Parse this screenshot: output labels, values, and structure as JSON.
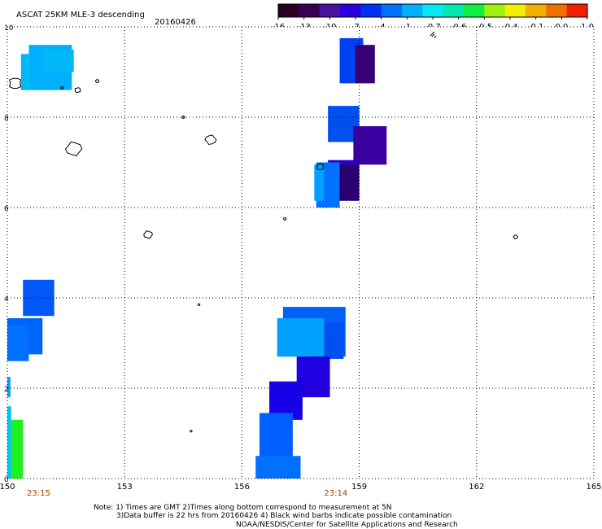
{
  "header": {
    "title": "ASCAT 25KM MLE-3 descending",
    "date": "20160426"
  },
  "colorbar": {
    "colors": [
      "#2a0020",
      "#3a0050",
      "#4a10a0",
      "#2a00e0",
      "#0030f0",
      "#0070ff",
      "#00b0ff",
      "#00e8f0",
      "#00e8b0",
      "#10f040",
      "#a0f010",
      "#f0f000",
      "#f0b000",
      "#f07000",
      "#f02000"
    ],
    "tick_labels": [
      "-16",
      "-13",
      "-10",
      "-7",
      "-4",
      "-1",
      "-0.7",
      "-0.6",
      "-0.5",
      "-0.4",
      "-0.1",
      "0.0",
      "1.0"
    ]
  },
  "map": {
    "x_ticks": [
      "150",
      "153",
      "156",
      "159",
      "162",
      "165"
    ],
    "y_ticks": [
      "0",
      "2",
      "4",
      "6",
      "8",
      "10"
    ],
    "time_labels": [
      {
        "lon": 150.8,
        "text": "23:15"
      },
      {
        "lon": 158.4,
        "text": "23:14"
      }
    ]
  },
  "mle_cells": [
    {
      "lon": 150.55,
      "lat": 8.6,
      "w": 1.1,
      "h": 1.0,
      "color": "#00b0ff"
    },
    {
      "lon": 150.9,
      "lat": 9.0,
      "w": 0.8,
      "h": 0.5,
      "color": "#00b8f8"
    },
    {
      "lon": 150.35,
      "lat": 8.6,
      "w": 0.25,
      "h": 0.8,
      "color": "#00b8f8"
    },
    {
      "lon": 158.5,
      "lat": 8.75,
      "w": 0.6,
      "h": 1.0,
      "color": "#0040f0"
    },
    {
      "lon": 158.9,
      "lat": 8.75,
      "w": 0.5,
      "h": 0.85,
      "color": "#3a0078"
    },
    {
      "lon": 158.2,
      "lat": 7.45,
      "w": 0.8,
      "h": 0.8,
      "color": "#0050f0"
    },
    {
      "lon": 158.85,
      "lat": 6.95,
      "w": 0.85,
      "h": 0.85,
      "color": "#3a00a0"
    },
    {
      "lon": 158.2,
      "lat": 6.15,
      "w": 0.8,
      "h": 0.9,
      "color": "#2a00c0"
    },
    {
      "lon": 158.45,
      "lat": 6.15,
      "w": 0.55,
      "h": 0.8,
      "color": "#2a0070"
    },
    {
      "lon": 157.9,
      "lat": 6.0,
      "w": 0.6,
      "h": 1.0,
      "color": "#0070ff"
    },
    {
      "lon": 157.85,
      "lat": 6.15,
      "w": 0.25,
      "h": 0.8,
      "color": "#00a0ff"
    },
    {
      "lon": 150.4,
      "lat": 3.6,
      "w": 0.8,
      "h": 0.8,
      "color": "#0058f8"
    },
    {
      "lon": 150.0,
      "lat": 2.75,
      "w": 0.9,
      "h": 0.8,
      "color": "#0064ff"
    },
    {
      "lon": 150.0,
      "lat": 2.6,
      "w": 0.55,
      "h": 0.8,
      "color": "#0070ff"
    },
    {
      "lon": 157.05,
      "lat": 2.7,
      "w": 1.6,
      "h": 1.1,
      "color": "#0060f8"
    },
    {
      "lon": 157.7,
      "lat": 2.65,
      "w": 0.9,
      "h": 0.8,
      "color": "#0050f0"
    },
    {
      "lon": 156.9,
      "lat": 2.7,
      "w": 1.2,
      "h": 0.85,
      "color": "#00a0ff"
    },
    {
      "lon": 157.4,
      "lat": 1.8,
      "w": 0.85,
      "h": 0.9,
      "color": "#2000e0"
    },
    {
      "lon": 156.7,
      "lat": 1.3,
      "w": 0.85,
      "h": 0.85,
      "color": "#1800e8"
    },
    {
      "lon": 156.45,
      "lat": 0.35,
      "w": 0.85,
      "h": 1.1,
      "color": "#0060ff"
    },
    {
      "lon": 156.35,
      "lat": 0.0,
      "w": 1.15,
      "h": 0.5,
      "color": "#0070ff"
    },
    {
      "lon": 150.0,
      "lat": 0.0,
      "w": 0.4,
      "h": 1.3,
      "color": "#20f020"
    },
    {
      "lon": 150.0,
      "lat": 0.0,
      "w": 0.1,
      "h": 1.6,
      "color": "#00c8f0"
    },
    {
      "lon": 150.0,
      "lat": 1.8,
      "w": 0.08,
      "h": 0.45,
      "color": "#00a0ff"
    }
  ],
  "islands": [
    {
      "lon": 150.2,
      "lat": 8.75,
      "r": 0.18
    },
    {
      "lon": 151.7,
      "lat": 7.3,
      "r": 0.22
    },
    {
      "lon": 155.2,
      "lat": 7.5,
      "r": 0.15
    },
    {
      "lon": 158.0,
      "lat": 6.9,
      "r": 0.1
    },
    {
      "lon": 153.6,
      "lat": 5.4,
      "r": 0.12
    },
    {
      "lon": 163.0,
      "lat": 5.35,
      "r": 0.06
    },
    {
      "lon": 154.5,
      "lat": 8.0,
      "r": 0.04
    },
    {
      "lon": 154.9,
      "lat": 3.85,
      "r": 0.03
    },
    {
      "lon": 154.7,
      "lat": 1.05,
      "r": 0.03
    },
    {
      "lon": 151.8,
      "lat": 8.6,
      "r": 0.08
    },
    {
      "lon": 151.4,
      "lat": 8.65,
      "r": 0.04
    },
    {
      "lon": 152.3,
      "lat": 8.8,
      "r": 0.05
    },
    {
      "lon": 157.1,
      "lat": 5.75,
      "r": 0.04
    }
  ],
  "notes": {
    "line1": "Note: 1) Times are GMT 2)Times along bottom correspond to measurement at 5N",
    "line2": "3)Data buffer is 22 hrs from 20160426 4) Black wind barbs indicate possible contamination",
    "line3": "NOAA/NESDIS/Center for Satellite Applications and Research"
  }
}
